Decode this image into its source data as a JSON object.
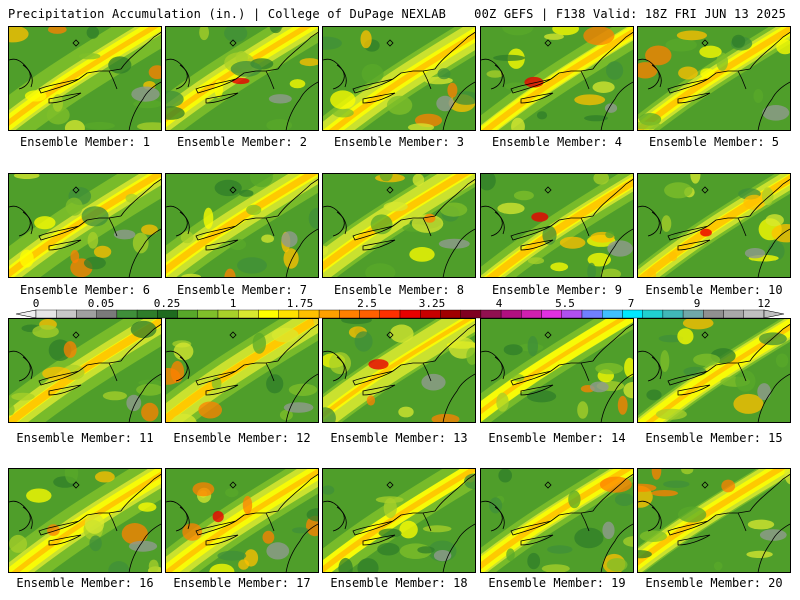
{
  "header": {
    "title_left": "Precipitation Accumulation (in.) | College of DuPage NEXLAB",
    "title_right": "00Z GEFS | F138 Valid: 18Z FRI JUN 13 2025"
  },
  "members": [
    "Ensemble Member: 1",
    "Ensemble Member: 2",
    "Ensemble Member: 3",
    "Ensemble Member: 4",
    "Ensemble Member: 5",
    "Ensemble Member: 6",
    "Ensemble Member: 7",
    "Ensemble Member: 8",
    "Ensemble Member: 9",
    "Ensemble Member: 10",
    "Ensemble Member: 11",
    "Ensemble Member: 12",
    "Ensemble Member: 13",
    "Ensemble Member: 14",
    "Ensemble Member: 15",
    "Ensemble Member: 16",
    "Ensemble Member: 17",
    "Ensemble Member: 18",
    "Ensemble Member: 19",
    "Ensemble Member: 20"
  ],
  "colorbar": {
    "tick_labels": [
      "0",
      "0.05",
      "0.25",
      "1",
      "1.75",
      "2.5",
      "3.25",
      "4",
      "5.5",
      "7",
      "9",
      "12"
    ],
    "colors": [
      "#e6e6e6",
      "#c8c8c8",
      "#a0a0a0",
      "#7a7a7a",
      "#3f8f3a",
      "#2f7d2a",
      "#1f6b1f",
      "#58a82a",
      "#7fbf2a",
      "#a8d02a",
      "#d8e830",
      "#ffff00",
      "#ffe000",
      "#ffc000",
      "#ffa000",
      "#ff8000",
      "#ff6000",
      "#ff3000",
      "#e80000",
      "#c80000",
      "#a00000",
      "#800020",
      "#901050",
      "#b01080",
      "#d020b0",
      "#e030e0",
      "#b050f0",
      "#7080ff",
      "#40c0ff",
      "#00e8ff",
      "#20d0d0",
      "#40b8b8",
      "#70a8a8",
      "#909090",
      "#a8a8a8",
      "#c0c0c0"
    ]
  }
}
